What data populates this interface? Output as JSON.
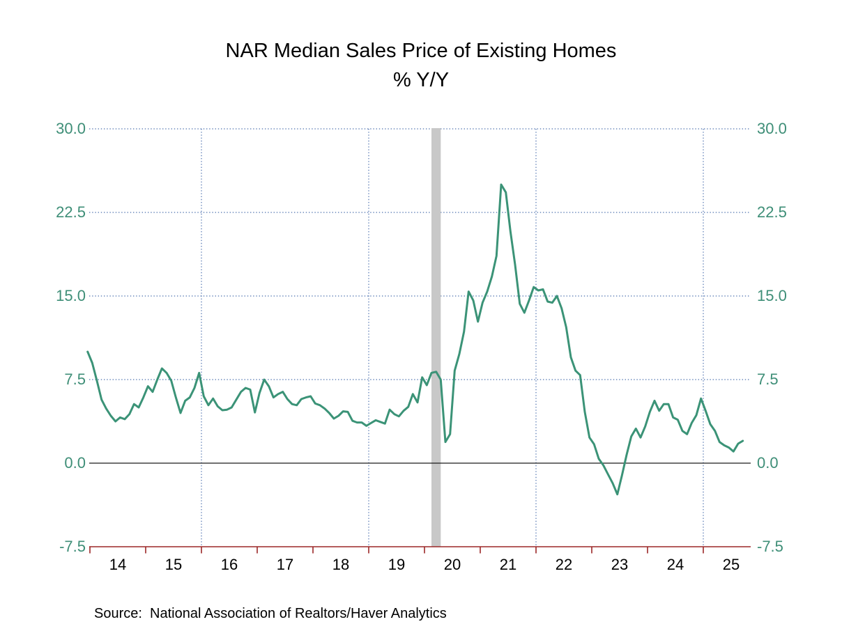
{
  "title": {
    "line1": "NAR Median Sales Price of Existing Homes",
    "line2": "% Y/Y"
  },
  "source": "Source:  National Association of Realtors/Haver Analytics",
  "chart_data": {
    "type": "line",
    "title": "NAR Median Sales Price of Existing Homes",
    "subtitle": "% Y/Y",
    "ylabel": "% Y/Y",
    "ylim": [
      -7.5,
      30.0
    ],
    "y_ticks": [
      30.0,
      22.5,
      15.0,
      7.5,
      0.0,
      -7.5
    ],
    "y_tick_labels": [
      "30.0",
      "22.5",
      "15.0",
      "7.5",
      "0.0",
      "-7.5"
    ],
    "x_tick_labels": [
      "14",
      "15",
      "16",
      "17",
      "18",
      "19",
      "20",
      "21",
      "22",
      "23",
      "24",
      "25"
    ],
    "grid": {
      "horizontal_dotted_at": [
        30.0,
        22.5,
        15.0,
        7.5
      ],
      "vertical_dotted_at_year_starts": [
        2016,
        2019,
        2022,
        2025
      ],
      "zero_line_solid": true
    },
    "legend_position": "none",
    "recession_band": {
      "start": "2020-02",
      "end": "2020-04"
    },
    "series": [
      {
        "name": "NAR Median Sales Price of Existing Homes, % Y/Y",
        "frequency": "monthly",
        "start": "2013-12",
        "end": "2025-09",
        "values": [
          10.0,
          9.0,
          7.4,
          5.7,
          4.9,
          4.25,
          3.75,
          4.1,
          3.95,
          4.4,
          5.3,
          5.0,
          5.9,
          6.9,
          6.4,
          7.5,
          8.5,
          8.1,
          7.4,
          5.9,
          4.5,
          5.6,
          5.9,
          6.75,
          8.1,
          6.0,
          5.2,
          5.8,
          5.1,
          4.75,
          4.8,
          5.0,
          5.7,
          6.4,
          6.75,
          6.6,
          4.55,
          6.3,
          7.5,
          6.9,
          5.9,
          6.2,
          6.4,
          5.75,
          5.3,
          5.2,
          5.75,
          5.9,
          6.0,
          5.35,
          5.2,
          4.9,
          4.5,
          4.0,
          4.25,
          4.65,
          4.6,
          3.8,
          3.65,
          3.65,
          3.35,
          3.6,
          3.85,
          3.7,
          3.55,
          4.8,
          4.4,
          4.2,
          4.7,
          5.05,
          6.2,
          5.45,
          7.7,
          7.0,
          8.1,
          8.2,
          7.5,
          1.9,
          2.6,
          8.3,
          9.8,
          11.8,
          15.4,
          14.6,
          12.7,
          14.4,
          15.4,
          16.75,
          18.6,
          25.0,
          24.3,
          20.8,
          17.8,
          14.3,
          13.5,
          14.6,
          15.8,
          15.5,
          15.6,
          14.5,
          14.4,
          15.0,
          13.9,
          12.2,
          9.5,
          8.3,
          7.9,
          4.6,
          2.3,
          1.7,
          0.4,
          -0.2,
          -1.0,
          -1.8,
          -2.8,
          -1.1,
          0.75,
          2.4,
          3.1,
          2.3,
          3.3,
          4.6,
          5.6,
          4.7,
          5.3,
          5.3,
          4.1,
          3.9,
          2.9,
          2.6,
          3.6,
          4.3,
          5.8,
          4.7,
          3.5,
          2.9,
          1.9,
          1.6,
          1.4,
          1.05,
          1.75,
          2.0
        ]
      }
    ]
  },
  "colors": {
    "line": "#3b9377",
    "axis_label": "#3e8e77",
    "gridline": "#4a6fad",
    "x_axis": "#9b2626",
    "zero_line": "#1a1a1a",
    "recession_band": "#c8c8c8",
    "text": "#000000",
    "background": "#ffffff"
  }
}
